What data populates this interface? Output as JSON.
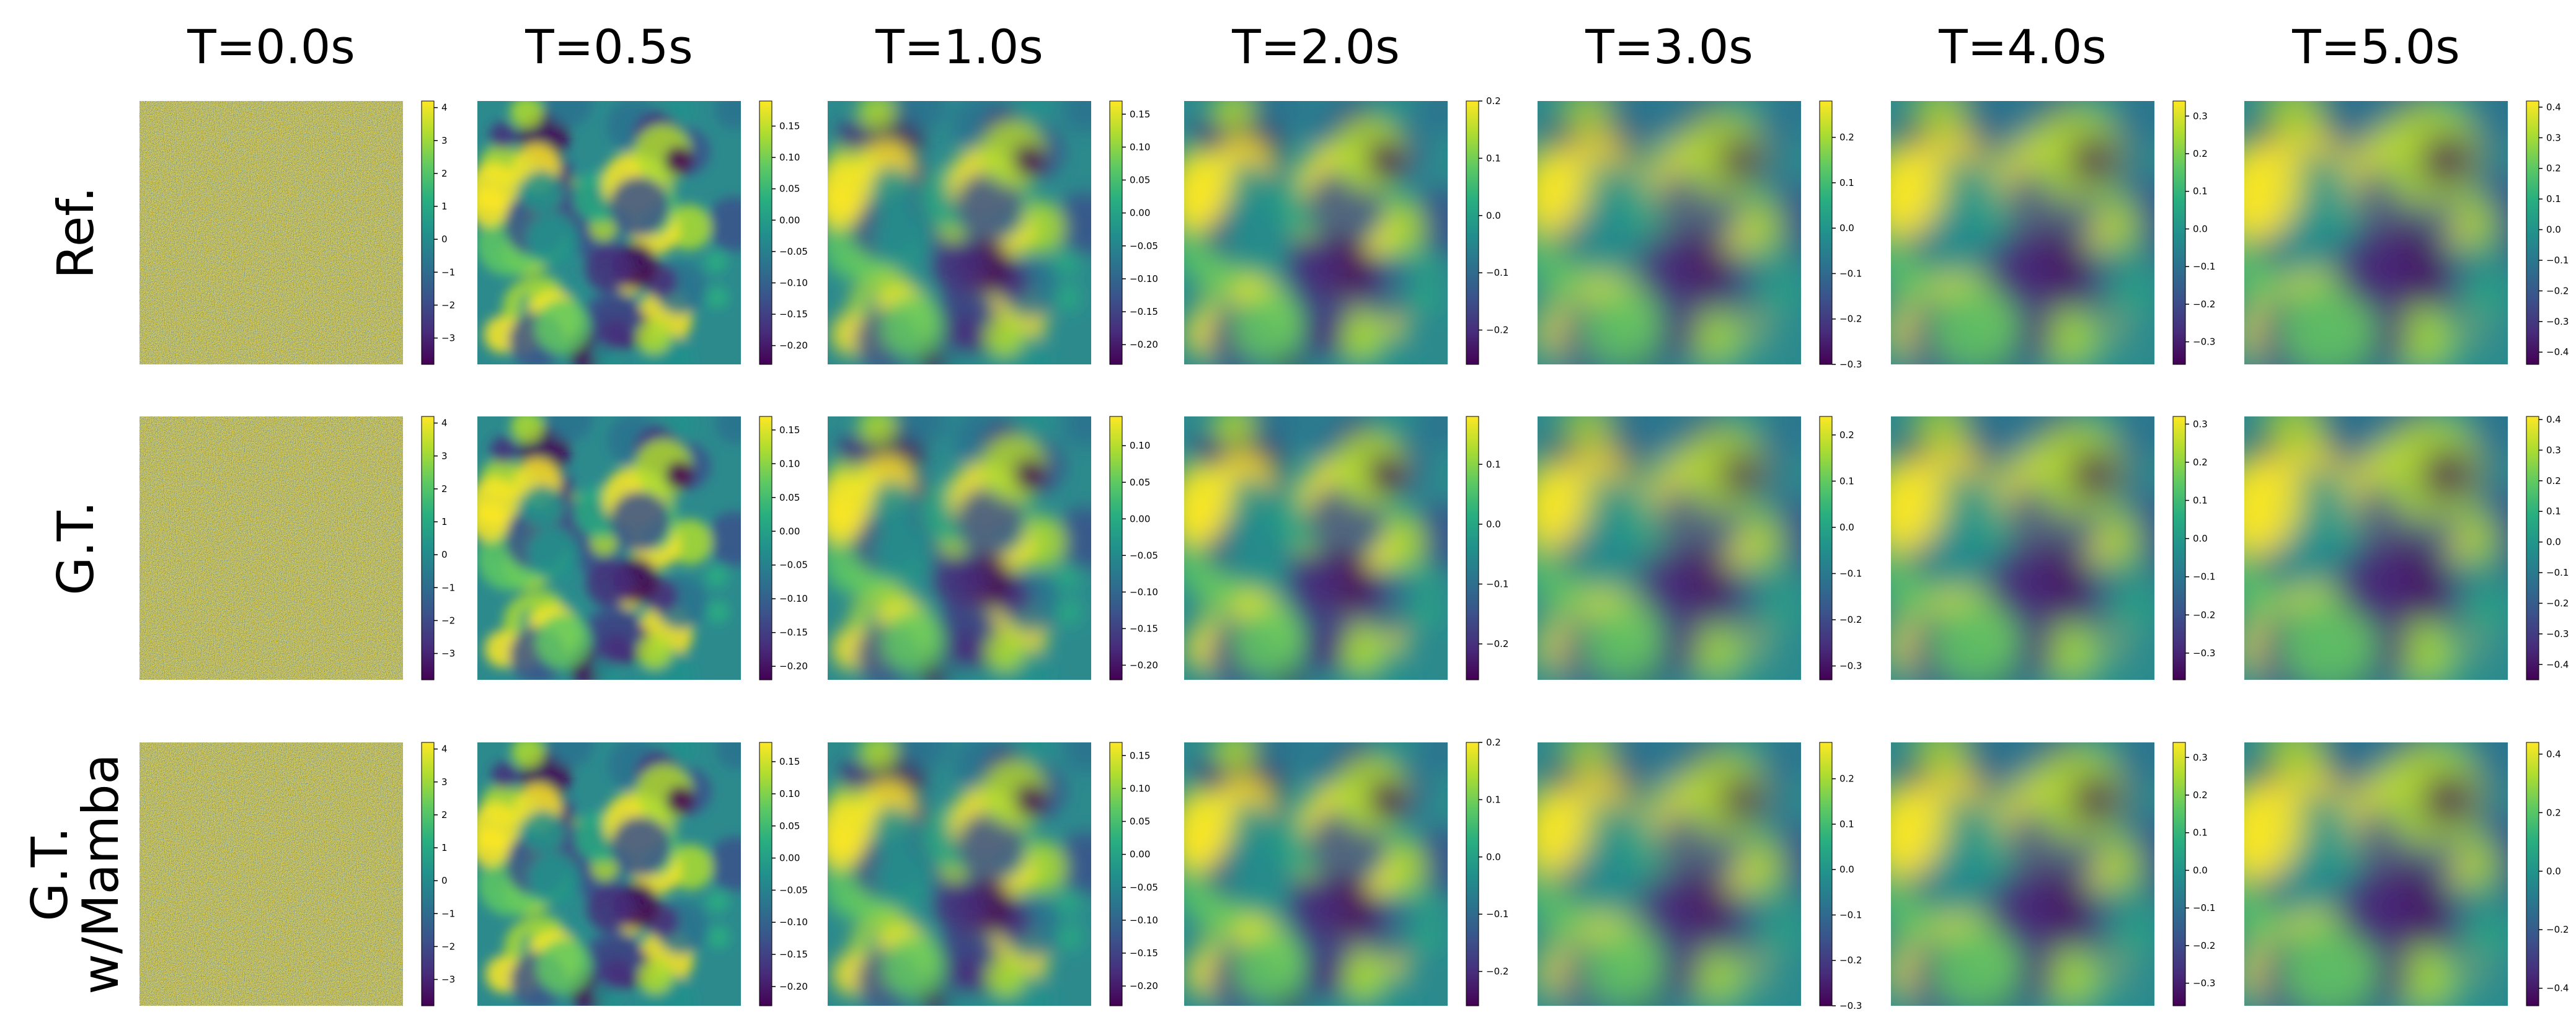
{
  "chart_data": {
    "type": "heatmap",
    "colormap": "viridis",
    "time_labels": [
      "T=0.0s",
      "T=0.5s",
      "T=1.0s",
      "T=2.0s",
      "T=3.0s",
      "T=4.0s",
      "T=5.0s"
    ],
    "row_labels": [
      [
        "Ref."
      ],
      [
        "G.T."
      ],
      [
        "G.T.",
        "w/Mamba"
      ]
    ],
    "colorbars": [
      [
        {
          "ticks": [
            "4",
            "3",
            "2",
            "1",
            "0",
            "−1",
            "−2",
            "−3"
          ],
          "tick_values": [
            4,
            3,
            2,
            1,
            0,
            -1,
            -2,
            -3
          ],
          "range": [
            -3.8,
            4.2
          ]
        },
        {
          "ticks": [
            "0.15",
            "0.10",
            "0.05",
            "0.00",
            "−0.05",
            "−0.10",
            "−0.15",
            "−0.20"
          ],
          "tick_values": [
            0.15,
            0.1,
            0.05,
            0.0,
            -0.05,
            -0.1,
            -0.15,
            -0.2
          ],
          "range": [
            -0.23,
            0.19
          ]
        },
        {
          "ticks": [
            "0.15",
            "0.10",
            "0.05",
            "0.00",
            "−0.05",
            "−0.10",
            "−0.15",
            "−0.20"
          ],
          "tick_values": [
            0.15,
            0.1,
            0.05,
            0.0,
            -0.05,
            -0.1,
            -0.15,
            -0.2
          ],
          "range": [
            -0.23,
            0.17
          ]
        },
        {
          "ticks": [
            "0.2",
            "0.1",
            "0.0",
            "−0.1",
            "−0.2"
          ],
          "tick_values": [
            0.2,
            0.1,
            0.0,
            -0.1,
            -0.2
          ],
          "range": [
            -0.26,
            0.2
          ]
        },
        {
          "ticks": [
            "0.2",
            "0.1",
            "0.0",
            "−0.1",
            "−0.2",
            "−0.3"
          ],
          "tick_values": [
            0.2,
            0.1,
            0.0,
            -0.1,
            -0.2,
            -0.3
          ],
          "range": [
            -0.3,
            0.28
          ]
        },
        {
          "ticks": [
            "0.3",
            "0.2",
            "0.1",
            "0.0",
            "−0.1",
            "−0.2",
            "−0.3"
          ],
          "tick_values": [
            0.3,
            0.2,
            0.1,
            0.0,
            -0.1,
            -0.2,
            -0.3
          ],
          "range": [
            -0.36,
            0.34
          ]
        },
        {
          "ticks": [
            "0.4",
            "0.3",
            "0.2",
            "0.1",
            "0.0",
            "−0.1",
            "−0.2",
            "−0.3",
            "−0.4"
          ],
          "tick_values": [
            0.4,
            0.3,
            0.2,
            0.1,
            0.0,
            -0.1,
            -0.2,
            -0.3,
            -0.4
          ],
          "range": [
            -0.44,
            0.42
          ]
        }
      ],
      [
        {
          "ticks": [
            "4",
            "3",
            "2",
            "1",
            "0",
            "−1",
            "−2",
            "−3"
          ],
          "tick_values": [
            4,
            3,
            2,
            1,
            0,
            -1,
            -2,
            -3
          ],
          "range": [
            -3.8,
            4.2
          ]
        },
        {
          "ticks": [
            "0.15",
            "0.10",
            "0.05",
            "0.00",
            "−0.05",
            "−0.10",
            "−0.15",
            "−0.20"
          ],
          "tick_values": [
            0.15,
            0.1,
            0.05,
            0.0,
            -0.05,
            -0.1,
            -0.15,
            -0.2
          ],
          "range": [
            -0.22,
            0.17
          ]
        },
        {
          "ticks": [
            "0.10",
            "0.05",
            "0.00",
            "−0.05",
            "−0.10",
            "−0.15",
            "−0.20"
          ],
          "tick_values": [
            0.1,
            0.05,
            0.0,
            -0.05,
            -0.1,
            -0.15,
            -0.2
          ],
          "range": [
            -0.22,
            0.14
          ]
        },
        {
          "ticks": [
            "0.1",
            "0.0",
            "−0.1",
            "−0.2"
          ],
          "tick_values": [
            0.1,
            0.0,
            -0.1,
            -0.2
          ],
          "range": [
            -0.26,
            0.18
          ]
        },
        {
          "ticks": [
            "0.2",
            "0.1",
            "0.0",
            "−0.1",
            "−0.2",
            "−0.3"
          ],
          "tick_values": [
            0.2,
            0.1,
            0.0,
            -0.1,
            -0.2,
            -0.3
          ],
          "range": [
            -0.33,
            0.24
          ]
        },
        {
          "ticks": [
            "0.3",
            "0.2",
            "0.1",
            "0.0",
            "−0.1",
            "−0.2",
            "−0.3"
          ],
          "tick_values": [
            0.3,
            0.2,
            0.1,
            0.0,
            -0.1,
            -0.2,
            -0.3
          ],
          "range": [
            -0.37,
            0.32
          ]
        },
        {
          "ticks": [
            "0.4",
            "0.3",
            "0.2",
            "0.1",
            "0.0",
            "−0.1",
            "−0.2",
            "−0.3",
            "−0.4"
          ],
          "tick_values": [
            0.4,
            0.3,
            0.2,
            0.1,
            0.0,
            -0.1,
            -0.2,
            -0.3,
            -0.4
          ],
          "range": [
            -0.45,
            0.41
          ]
        }
      ],
      [
        {
          "ticks": [
            "4",
            "3",
            "2",
            "1",
            "0",
            "−1",
            "−2",
            "−3"
          ],
          "tick_values": [
            4,
            3,
            2,
            1,
            0,
            -1,
            -2,
            -3
          ],
          "range": [
            -3.8,
            4.2
          ]
        },
        {
          "ticks": [
            "0.15",
            "0.10",
            "0.05",
            "0.00",
            "−0.05",
            "−0.10",
            "−0.15",
            "−0.20"
          ],
          "tick_values": [
            0.15,
            0.1,
            0.05,
            0.0,
            -0.05,
            -0.1,
            -0.15,
            -0.2
          ],
          "range": [
            -0.23,
            0.18
          ]
        },
        {
          "ticks": [
            "0.15",
            "0.10",
            "0.05",
            "0.00",
            "−0.05",
            "−0.10",
            "−0.15",
            "−0.20"
          ],
          "tick_values": [
            0.15,
            0.1,
            0.05,
            0.0,
            -0.05,
            -0.1,
            -0.15,
            -0.2
          ],
          "range": [
            -0.23,
            0.17
          ]
        },
        {
          "ticks": [
            "0.2",
            "0.1",
            "0.0",
            "−0.1",
            "−0.2"
          ],
          "tick_values": [
            0.2,
            0.1,
            0.0,
            -0.1,
            -0.2
          ],
          "range": [
            -0.26,
            0.2
          ]
        },
        {
          "ticks": [
            "0.2",
            "0.1",
            "0.0",
            "−0.1",
            "−0.2",
            "−0.3"
          ],
          "tick_values": [
            0.2,
            0.1,
            0.0,
            -0.1,
            -0.2,
            -0.3
          ],
          "range": [
            -0.3,
            0.28
          ]
        },
        {
          "ticks": [
            "0.3",
            "0.2",
            "0.1",
            "0.0",
            "−0.1",
            "−0.2",
            "−0.3"
          ],
          "tick_values": [
            0.3,
            0.2,
            0.1,
            0.0,
            -0.1,
            -0.2,
            -0.3
          ],
          "range": [
            -0.36,
            0.34
          ]
        },
        {
          "ticks": [
            "0.4",
            "0.2",
            "0.0",
            "−0.2",
            "−0.4"
          ],
          "tick_values": [
            0.4,
            0.2,
            0.0,
            -0.2,
            -0.4
          ],
          "range": [
            -0.46,
            0.44
          ]
        }
      ]
    ]
  }
}
